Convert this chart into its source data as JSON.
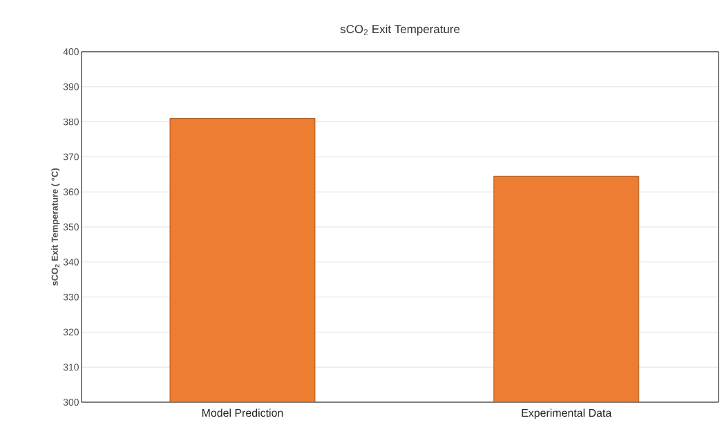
{
  "chart_data": {
    "type": "bar",
    "title": "sCO$_{2}$ Exit Temperature",
    "ylabel": "sCO$_{2}$ Exit Temperature ( °C)",
    "categories": [
      "Model Prediction",
      "Experimental Data"
    ],
    "values": [
      381,
      364.5
    ],
    "color": "#ed7d31",
    "ylim": [
      300,
      400
    ],
    "yticks": [
      300,
      310,
      320,
      330,
      340,
      350,
      360,
      370,
      380,
      390,
      400
    ],
    "grid": "y"
  }
}
